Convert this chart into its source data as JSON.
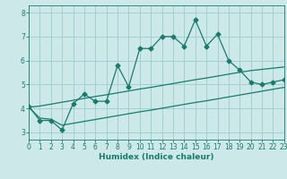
{
  "title": "",
  "xlabel": "Humidex (Indice chaleur)",
  "ylabel": "",
  "x_data": [
    0,
    1,
    2,
    3,
    4,
    5,
    6,
    7,
    8,
    9,
    10,
    11,
    12,
    13,
    14,
    15,
    16,
    17,
    18,
    19,
    20,
    21,
    22,
    23
  ],
  "y_main": [
    4.1,
    3.5,
    3.5,
    3.1,
    4.2,
    4.6,
    4.3,
    4.3,
    5.8,
    4.9,
    6.5,
    6.5,
    7.0,
    7.0,
    6.6,
    7.7,
    6.6,
    7.1,
    6.0,
    5.6,
    5.1,
    5.0,
    5.1,
    5.2
  ],
  "y_upper": [
    4.05,
    4.1,
    4.18,
    4.26,
    4.34,
    4.42,
    4.5,
    4.57,
    4.65,
    4.73,
    4.81,
    4.88,
    4.96,
    5.04,
    5.12,
    5.2,
    5.27,
    5.35,
    5.43,
    5.51,
    5.58,
    5.63,
    5.68,
    5.73
  ],
  "y_lower": [
    4.05,
    3.6,
    3.55,
    3.3,
    3.38,
    3.46,
    3.54,
    3.62,
    3.7,
    3.78,
    3.86,
    3.93,
    4.01,
    4.09,
    4.17,
    4.25,
    4.32,
    4.4,
    4.48,
    4.56,
    4.64,
    4.72,
    4.8,
    4.88
  ],
  "line_color": "#1a7a6e",
  "bg_color": "#cce8e8",
  "grid_color": "#99cccc",
  "ylim": [
    2.7,
    8.3
  ],
  "xlim": [
    0,
    23
  ],
  "yticks": [
    3,
    4,
    5,
    6,
    7,
    8
  ],
  "xticks": [
    0,
    1,
    2,
    3,
    4,
    5,
    6,
    7,
    8,
    9,
    10,
    11,
    12,
    13,
    14,
    15,
    16,
    17,
    18,
    19,
    20,
    21,
    22,
    23
  ],
  "marker": "D",
  "markersize": 2.5,
  "linewidth": 0.9,
  "tick_fontsize": 5.5,
  "xlabel_fontsize": 6.5
}
